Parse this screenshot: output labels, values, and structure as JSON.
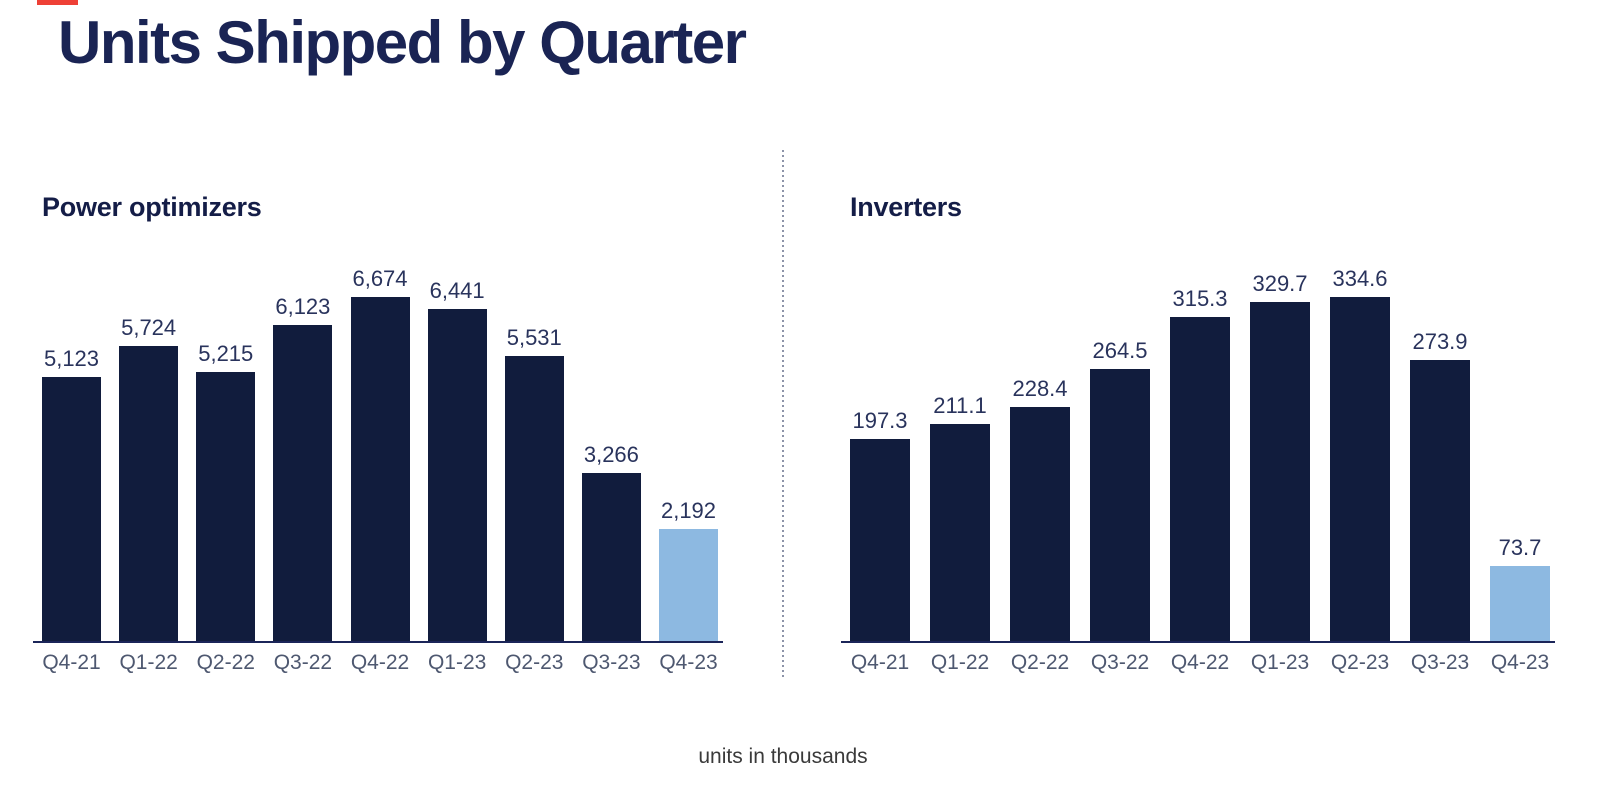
{
  "page": {
    "title": "Units Shipped by Quarter",
    "footnote": "units in thousands"
  },
  "colors": {
    "bar": "#111C3D",
    "highlight": "#8DB9E1",
    "accent_red": "#EE4036",
    "title_navy": "#1A2454",
    "value_label": "#29335C",
    "axis_label": "#4E5870",
    "axis_line": "#1B2559"
  },
  "chart_data": [
    {
      "type": "bar",
      "title": "Power optimizers",
      "categories": [
        "Q4-21",
        "Q1-22",
        "Q2-22",
        "Q3-22",
        "Q4-22",
        "Q1-23",
        "Q2-23",
        "Q3-23",
        "Q4-23"
      ],
      "values": [
        5123,
        5724,
        5215,
        6123,
        6674,
        6441,
        5531,
        3266,
        2192
      ],
      "value_labels": [
        "5,123",
        "5,724",
        "5,215",
        "6,123",
        "6,674",
        "6,441",
        "5,531",
        "3,266",
        "2,192"
      ],
      "highlight_index": 8,
      "ylim": [
        0,
        6674
      ],
      "grid": false,
      "legend": false
    },
    {
      "type": "bar",
      "title": "Inverters",
      "categories": [
        "Q4-21",
        "Q1-22",
        "Q2-22",
        "Q3-22",
        "Q4-22",
        "Q1-23",
        "Q2-23",
        "Q3-23",
        "Q4-23"
      ],
      "values": [
        197.3,
        211.1,
        228.4,
        264.5,
        315.3,
        329.7,
        334.6,
        273.9,
        73.7
      ],
      "value_labels": [
        "197.3",
        "211.1",
        "228.4",
        "264.5",
        "315.3",
        "329.7",
        "334.6",
        "273.9",
        "73.7"
      ],
      "highlight_index": 8,
      "ylim": [
        0,
        334.6
      ],
      "grid": false,
      "legend": false
    }
  ]
}
